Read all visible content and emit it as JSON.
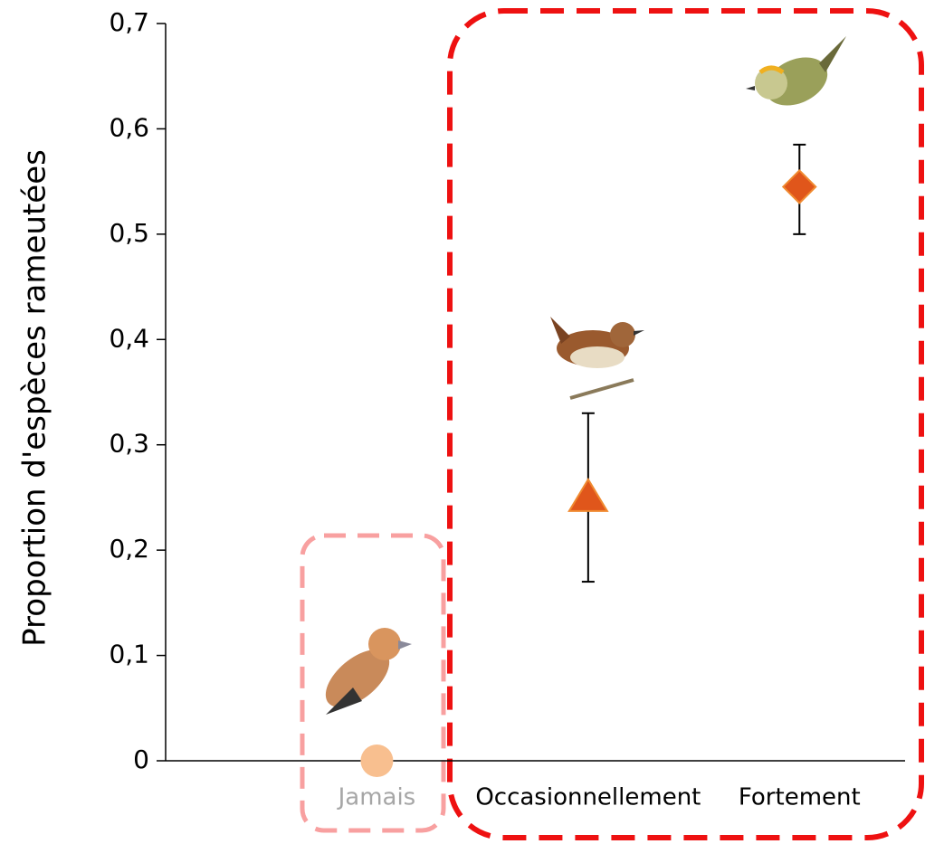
{
  "chart_data": {
    "type": "scatter",
    "y_label": "Proportion d'espèces rameutées",
    "categories": [
      "Jamais",
      "Occasionnellement",
      "Fortement"
    ],
    "values": [
      0,
      0.25,
      0.545
    ],
    "error_low": [
      null,
      0.17,
      0.5
    ],
    "error_high": [
      null,
      0.33,
      0.585
    ],
    "markers": [
      "circle",
      "triangle",
      "diamond"
    ],
    "colors": [
      "#f8bf8f",
      "#e0561b",
      "#e0561b"
    ],
    "label_colors": [
      "#a6a6a6",
      "#000000",
      "#000000"
    ],
    "ylim": [
      0,
      0.7
    ],
    "yticks": [
      0,
      {
        "value": 0.1,
        "label": "0,1"
      },
      {
        "value": 0.2,
        "label": "0,2"
      },
      {
        "value": 0.3,
        "label": "0,3"
      },
      {
        "value": 0.4,
        "label": "0,4"
      },
      {
        "value": 0.5,
        "label": "0,5"
      },
      {
        "value": 0.6,
        "label": "0,6"
      },
      {
        "value": 0.7,
        "label": "0,7"
      }
    ]
  }
}
